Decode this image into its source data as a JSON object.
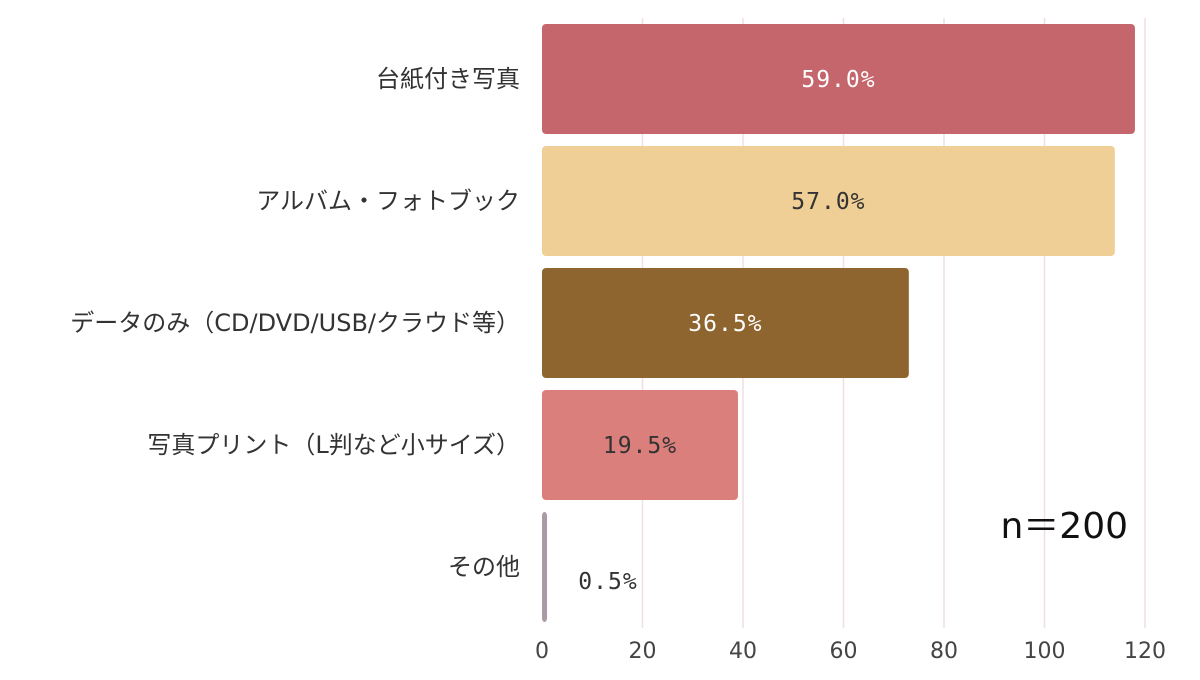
{
  "chart_data": {
    "type": "bar",
    "orientation": "horizontal",
    "categories": [
      "台紙付き写真",
      "アルバム・フォトブック",
      "データのみ（CD/DVD/USB/クラウド等）",
      "写真プリント（L判など小サイズ）",
      "その他"
    ],
    "values": [
      118,
      114,
      73,
      39,
      1
    ],
    "data_labels": [
      "59.0%",
      "57.0%",
      "36.5%",
      "19.5%",
      "0.5%"
    ],
    "colors": [
      "#c4666c",
      "#f0cf96",
      "#8e652e",
      "#da7f7c",
      "#a99aa5"
    ],
    "label_colors": [
      "#ffffff",
      "#333333",
      "#ffffff",
      "#333333",
      "#333333"
    ],
    "xlim": [
      0,
      120
    ],
    "xticks": [
      0,
      20,
      40,
      60,
      80,
      100,
      120
    ],
    "grid": true,
    "gridline_color": "#f0dfe3",
    "annotation": "n＝200",
    "title": "",
    "xlabel": "",
    "ylabel": ""
  }
}
